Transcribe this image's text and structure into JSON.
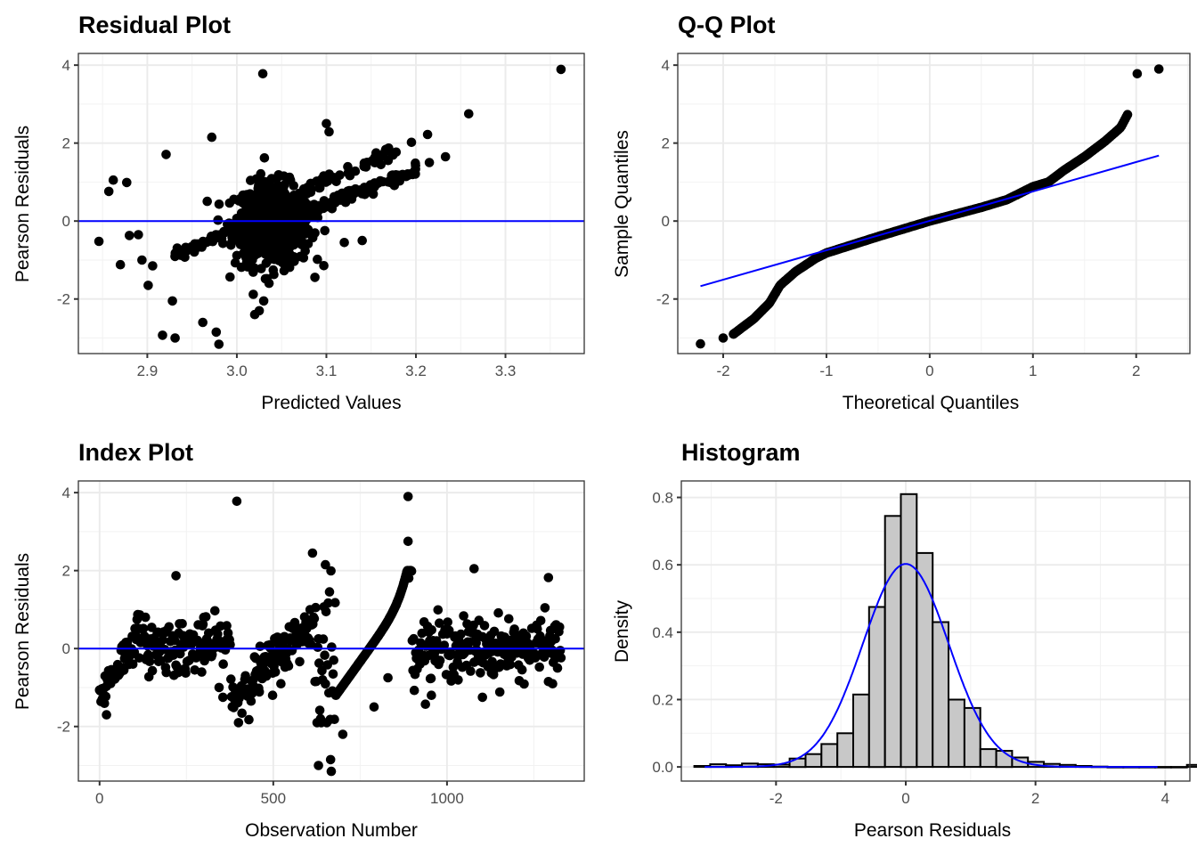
{
  "colors": {
    "points": "#000000",
    "reference_line": "#0000ff",
    "bar_fill": "#c8c8c8",
    "bar_stroke": "#000000",
    "grid": "#ebebeb"
  },
  "chart_data": [
    {
      "id": "residual",
      "type": "scatter",
      "title": "Residual Plot",
      "xlabel": "Predicted Values",
      "ylabel": "Pearson Residuals",
      "xlim": [
        2.823,
        3.388
      ],
      "ylim": [
        -3.4,
        4.3
      ],
      "xticks": [
        "2.9",
        "3.0",
        "3.1",
        "3.2",
        "3.3"
      ],
      "xtick_values": [
        2.9,
        3.0,
        3.1,
        3.2,
        3.3
      ],
      "yticks": [
        "-2",
        "0",
        "2",
        "4"
      ],
      "ytick_values": [
        -2,
        0,
        2,
        4
      ],
      "hline": 0,
      "outliers": [
        [
          3.029,
          3.78
        ],
        [
          3.362,
          3.89
        ],
        [
          3.259,
          2.75
        ],
        [
          3.213,
          2.22
        ],
        [
          3.195,
          2.02
        ],
        [
          2.972,
          2.15
        ],
        [
          2.921,
          1.71
        ],
        [
          3.1,
          2.5
        ],
        [
          3.103,
          2.29
        ],
        [
          2.862,
          1.05
        ],
        [
          2.857,
          0.76
        ],
        [
          2.846,
          -0.52
        ],
        [
          2.877,
          0.99
        ],
        [
          2.88,
          -0.37
        ],
        [
          2.89,
          -0.35
        ],
        [
          2.901,
          -1.65
        ],
        [
          2.928,
          -2.05
        ],
        [
          2.917,
          -2.93
        ],
        [
          2.931,
          -3.0
        ],
        [
          2.98,
          -3.16
        ],
        [
          2.977,
          -2.85
        ],
        [
          2.962,
          -2.6
        ],
        [
          3.02,
          -2.4
        ],
        [
          3.025,
          -2.3
        ],
        [
          3.03,
          -2.05
        ],
        [
          3.14,
          -0.5
        ],
        [
          3.12,
          -0.55
        ],
        [
          3.233,
          1.65
        ],
        [
          3.215,
          1.5
        ],
        [
          2.906,
          -1.15
        ],
        [
          2.894,
          -1.0
        ],
        [
          2.87,
          -1.12
        ]
      ],
      "cluster": {
        "center_x": 3.04,
        "spread_x": 0.03,
        "center_y": -0.1,
        "spread_y": 0.7
      },
      "bands": [
        {
          "x0": 2.93,
          "y0": -0.9,
          "x1": 3.18,
          "y1": 1.9
        },
        {
          "x0": 3.05,
          "y0": 0.0,
          "x1": 3.2,
          "y1": 1.3
        }
      ]
    },
    {
      "id": "qq",
      "type": "scatter",
      "title": "Q-Q Plot",
      "xlabel": "Theoretical Quantiles",
      "ylabel": "Sample Quantiles",
      "xlim": [
        -2.44,
        2.52
      ],
      "ylim": [
        -3.4,
        4.3
      ],
      "xticks": [
        "-2",
        "-1",
        "0",
        "1",
        "2"
      ],
      "xtick_values": [
        -2,
        -1,
        0,
        1,
        2
      ],
      "yticks": [
        "-2",
        "0",
        "2",
        "4"
      ],
      "ytick_values": [
        -2,
        0,
        2,
        4
      ],
      "reference_line": {
        "x": [
          -2.22,
          2.22
        ],
        "y": [
          -1.67,
          1.68
        ]
      },
      "curve_knots": {
        "x": [
          -2.22,
          -2.0,
          -1.9,
          -1.7,
          -1.55,
          -1.45,
          -1.3,
          -1.1,
          -1.0,
          -0.5,
          0,
          0.5,
          0.75,
          1.0,
          1.15,
          1.3,
          1.5,
          1.7,
          1.85,
          1.92,
          2.01,
          2.22
        ],
        "y": [
          -3.15,
          -3.0,
          -2.9,
          -2.5,
          -2.1,
          -1.65,
          -1.3,
          -0.95,
          -0.82,
          -0.4,
          0.0,
          0.35,
          0.55,
          0.88,
          1.0,
          1.3,
          1.65,
          2.05,
          2.4,
          2.75,
          3.78,
          3.9
        ]
      }
    },
    {
      "id": "index",
      "type": "scatter",
      "title": "Index Plot",
      "xlabel": "Observation Number",
      "ylabel": "Pearson Residuals",
      "xlim": [
        -61,
        1395
      ],
      "ylim": [
        -3.4,
        4.3
      ],
      "xticks": [
        "0",
        "500",
        "1000"
      ],
      "xtick_values": [
        0,
        500,
        1000
      ],
      "yticks": [
        "-2",
        "0",
        "2",
        "4"
      ],
      "ytick_values": [
        -2,
        0,
        2,
        4
      ],
      "hline": 0,
      "n_observations": 1330,
      "outliers": [
        [
          395,
          3.78
        ],
        [
          888,
          3.9
        ],
        [
          888,
          2.75
        ],
        [
          613,
          2.45
        ],
        [
          650,
          2.15
        ],
        [
          220,
          1.87
        ],
        [
          1078,
          2.05
        ],
        [
          1292,
          1.82
        ],
        [
          20,
          -1.7
        ],
        [
          400,
          -1.9
        ],
        [
          630,
          -3.0
        ],
        [
          667,
          -3.15
        ],
        [
          665,
          -2.85
        ],
        [
          700,
          -2.2
        ],
        [
          790,
          -1.5
        ],
        [
          830,
          -0.75
        ],
        [
          1102,
          -1.25
        ],
        [
          955,
          -1.2
        ],
        [
          355,
          -1.25
        ],
        [
          498,
          -1.2
        ]
      ]
    },
    {
      "id": "histogram",
      "type": "bar",
      "title": "Histogram",
      "xlabel": "Pearson Residuals",
      "ylabel": "Density",
      "xlim": [
        -3.46,
        4.38
      ],
      "ylim": [
        -0.042,
        0.849
      ],
      "xticks": [
        "-2",
        "0",
        "2",
        "4"
      ],
      "xtick_values": [
        -2,
        0,
        2,
        4
      ],
      "yticks": [
        "0.0",
        "0.2",
        "0.4",
        "0.6",
        "0.8"
      ],
      "ytick_values": [
        0,
        0.2,
        0.4,
        0.6,
        0.8
      ],
      "bin_width": 0.245,
      "bin_start": -3.26,
      "densities": [
        0.003,
        0.008,
        0.005,
        0.01,
        0.008,
        0.007,
        0.025,
        0.038,
        0.068,
        0.1,
        0.215,
        0.475,
        0.745,
        0.81,
        0.635,
        0.43,
        0.2,
        0.175,
        0.053,
        0.048,
        0.028,
        0.015,
        0.009,
        0.006,
        0.003,
        0.001,
        0.0,
        0.0,
        0.0,
        0.0,
        0.0,
        0.006
      ],
      "normal_curve": {
        "mean": 0.0,
        "sd": 0.662,
        "x_range": [
          -3.1,
          3.9
        ]
      }
    }
  ]
}
